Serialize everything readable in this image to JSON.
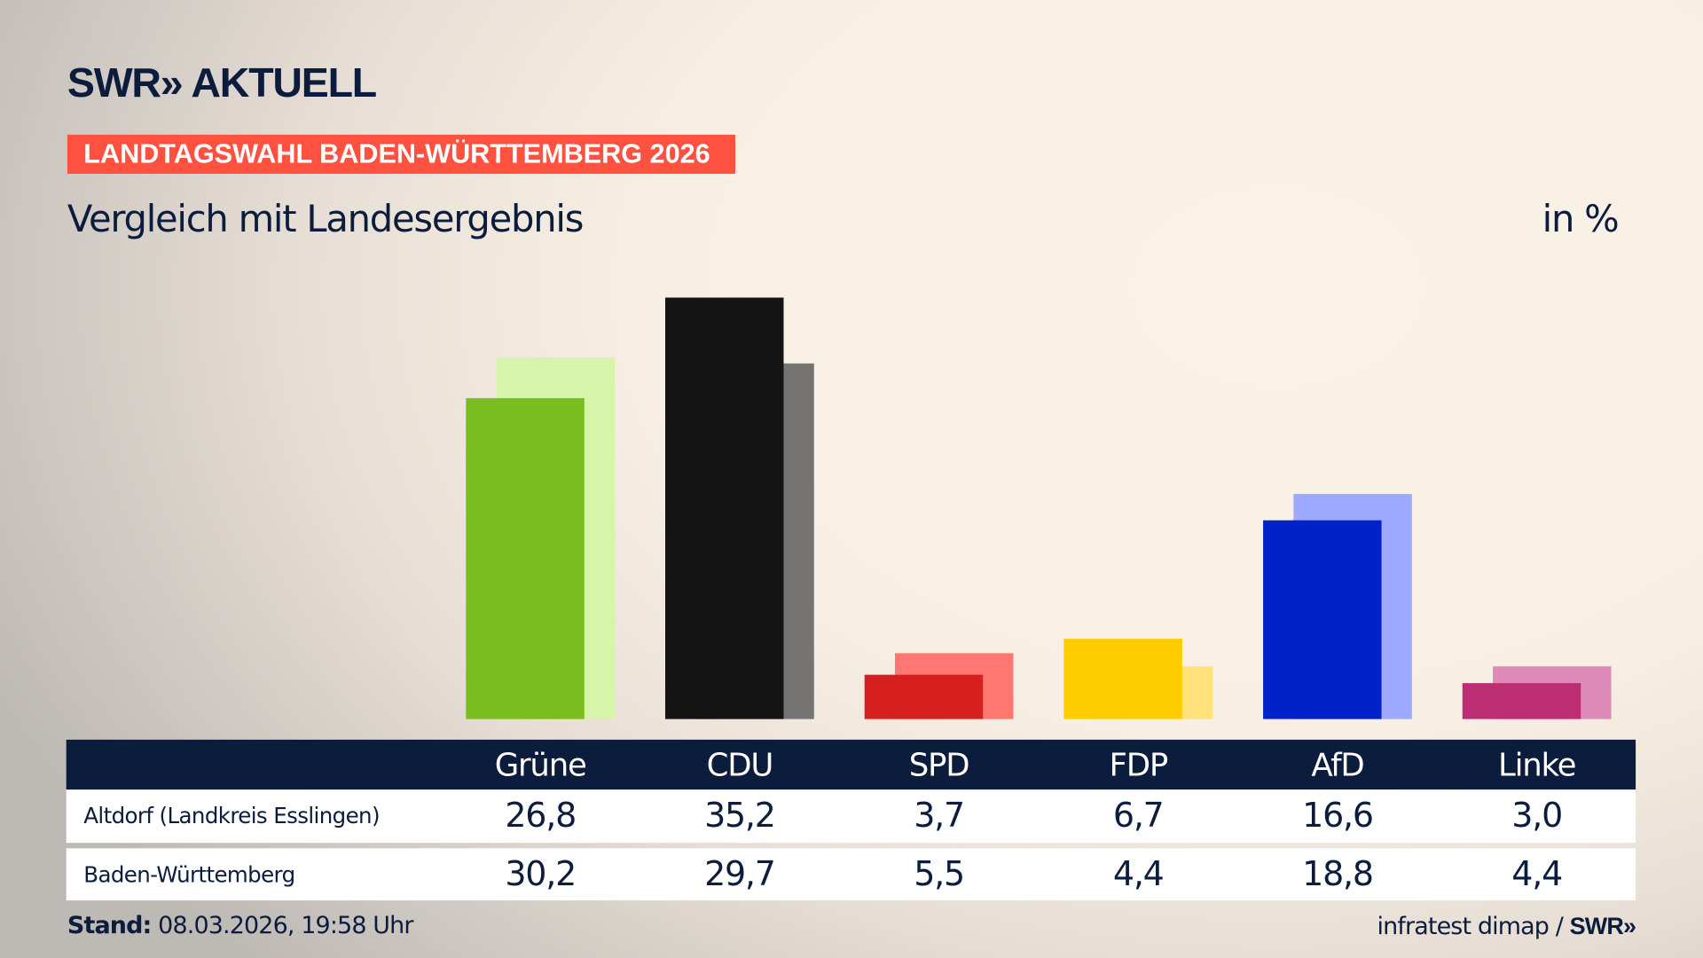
{
  "header": {
    "logo": "SWR» AKTUELL",
    "banner": "LANDTAGSWAHL BADEN-WÜRTTEMBERG 2026",
    "subtitle": "Vergleich mit Landesergebnis",
    "unit": "in %"
  },
  "chart_data": {
    "type": "bar",
    "categories": [
      "Grüne",
      "CDU",
      "SPD",
      "FDP",
      "AfD",
      "Linke"
    ],
    "series": [
      {
        "name": "Altdorf (Landkreis Esslingen)",
        "values": [
          26.8,
          35.2,
          3.7,
          6.7,
          16.6,
          3.0
        ],
        "labels": [
          "26,8",
          "35,2",
          "3,7",
          "6,7",
          "16,6",
          "3,0"
        ],
        "colors": [
          "#7abd1e",
          "#141414",
          "#d61f1f",
          "#ffcc00",
          "#0022c8",
          "#bc2e73"
        ]
      },
      {
        "name": "Baden-Württemberg",
        "values": [
          30.2,
          29.7,
          5.5,
          4.4,
          18.8,
          4.4
        ],
        "labels": [
          "30,2",
          "29,7",
          "5,5",
          "4,4",
          "18,8",
          "4,4"
        ],
        "colors": [
          "#d6f5aa",
          "#757473",
          "#ff7770",
          "#ffe27a",
          "#9eaaff",
          "#de8ab8"
        ]
      }
    ],
    "ylim": [
      0,
      35.2
    ],
    "grid": false
  },
  "footer": {
    "stand_label": "Stand:",
    "stand_value": " 08.03.2026, 19:58 Uhr",
    "source": "infratest dimap / ",
    "source_logo": "SWR»"
  }
}
